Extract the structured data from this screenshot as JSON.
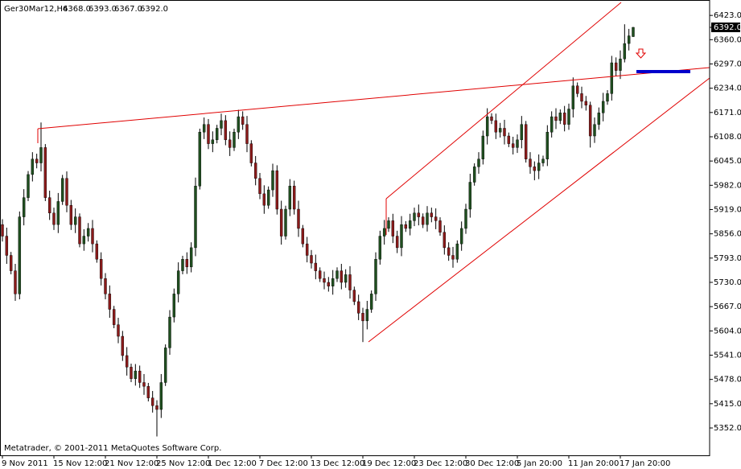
{
  "chart_data": {
    "type": "candlestick",
    "title": "Ger30Mar12,H4",
    "header_values": [
      "6368.0",
      "6393.0",
      "6367.0",
      "6392.0"
    ],
    "price_label": "6392.0",
    "footer": "Metatrader, © 2001-2011 MetaQuotes Software Corp.",
    "up_color": "#1f4f1f",
    "down_color": "#8b1a1a",
    "ylim": [
      5281,
      6463
    ],
    "yticks": [
      {
        "value": 6423,
        "label": "6423.0"
      },
      {
        "value": 6360,
        "label": "6360.0"
      },
      {
        "value": 6297,
        "label": "6297.0"
      },
      {
        "value": 6234,
        "label": "6234.0"
      },
      {
        "value": 6171,
        "label": "6171.0"
      },
      {
        "value": 6108,
        "label": "6108.0"
      },
      {
        "value": 6045,
        "label": "6045.0"
      },
      {
        "value": 5982,
        "label": "5982.0"
      },
      {
        "value": 5919,
        "label": "5919.0"
      },
      {
        "value": 5856,
        "label": "5856.0"
      },
      {
        "value": 5793,
        "label": "5793.0"
      },
      {
        "value": 5730,
        "label": "5730.0"
      },
      {
        "value": 5667,
        "label": "5667.0"
      },
      {
        "value": 5604,
        "label": "5604.0"
      },
      {
        "value": 5541,
        "label": "5541.0"
      },
      {
        "value": 5478,
        "label": "5478.0"
      },
      {
        "value": 5415,
        "label": "5415.0"
      },
      {
        "value": 5352,
        "label": "5352.0"
      }
    ],
    "categories": [
      "9 Nov 2011",
      null,
      null,
      null,
      null,
      null,
      null,
      null,
      null,
      null,
      null,
      null,
      "15 Nov 12:00",
      null,
      null,
      null,
      null,
      null,
      null,
      null,
      null,
      null,
      null,
      null,
      "21 Nov 12:00",
      null,
      null,
      null,
      null,
      null,
      null,
      null,
      null,
      null,
      null,
      null,
      "25 Nov 12:00",
      null,
      null,
      null,
      null,
      null,
      null,
      null,
      null,
      null,
      null,
      null,
      "1 Dec 12:00",
      null,
      null,
      null,
      null,
      null,
      null,
      null,
      null,
      null,
      null,
      null,
      "7 Dec 12:00",
      null,
      null,
      null,
      null,
      null,
      null,
      null,
      null,
      null,
      null,
      null,
      "13 Dec 12:00",
      null,
      null,
      null,
      null,
      null,
      null,
      null,
      null,
      null,
      null,
      null,
      "19 Dec 12:00",
      null,
      null,
      null,
      null,
      null,
      null,
      null,
      null,
      null,
      null,
      null,
      "23 Dec 12:00",
      null,
      null,
      null,
      null,
      null,
      null,
      null,
      null,
      null,
      null,
      null,
      "30 Dec 12:00",
      null,
      null,
      null,
      null,
      null,
      null,
      null,
      null,
      null,
      null,
      null,
      "5 Jan 20:00",
      null,
      null,
      null,
      null,
      null,
      null,
      null,
      null,
      null,
      null,
      null,
      "11 Jan 20:00",
      null,
      null,
      null,
      null,
      null,
      null,
      null,
      null,
      null,
      null,
      null,
      "17 Jan 20:00",
      null,
      null,
      null
    ],
    "ohlc": [
      [
        5880,
        5894,
        5836,
        5850
      ],
      [
        5850,
        5872,
        5778,
        5800
      ],
      [
        5800,
        5809,
        5751,
        5760
      ],
      [
        5760,
        5778,
        5682,
        5700
      ],
      [
        5700,
        5914,
        5686,
        5900
      ],
      [
        5900,
        5972,
        5878,
        5950
      ],
      [
        5950,
        6019,
        5941,
        6010
      ],
      [
        6010,
        6068,
        5992,
        6050
      ],
      [
        6050,
        6064,
        6026,
        6040
      ],
      [
        6040,
        6145,
        6018,
        6080
      ],
      [
        6080,
        6089,
        5941,
        5950
      ],
      [
        5950,
        5968,
        5892,
        5910
      ],
      [
        5910,
        5924,
        5866,
        5880
      ],
      [
        5880,
        5962,
        5858,
        5940
      ],
      [
        5940,
        6009,
        5931,
        6000
      ],
      [
        6000,
        6018,
        5912,
        5930
      ],
      [
        5930,
        5944,
        5866,
        5880
      ],
      [
        5880,
        5922,
        5858,
        5900
      ],
      [
        5900,
        5909,
        5821,
        5830
      ],
      [
        5830,
        5868,
        5812,
        5850
      ],
      [
        5850,
        5884,
        5836,
        5870
      ],
      [
        5870,
        5892,
        5808,
        5830
      ],
      [
        5830,
        5839,
        5781,
        5790
      ],
      [
        5790,
        5808,
        5722,
        5740
      ],
      [
        5740,
        5754,
        5686,
        5700
      ],
      [
        5700,
        5722,
        5638,
        5660
      ],
      [
        5660,
        5669,
        5611,
        5620
      ],
      [
        5620,
        5638,
        5572,
        5590
      ],
      [
        5590,
        5604,
        5526,
        5540
      ],
      [
        5540,
        5562,
        5488,
        5510
      ],
      [
        5510,
        5519,
        5471,
        5480
      ],
      [
        5480,
        5518,
        5462,
        5500
      ],
      [
        5500,
        5514,
        5456,
        5470
      ],
      [
        5470,
        5492,
        5438,
        5460
      ],
      [
        5460,
        5469,
        5421,
        5430
      ],
      [
        5430,
        5448,
        5392,
        5410
      ],
      [
        5410,
        5424,
        5330,
        5400
      ],
      [
        5400,
        5492,
        5378,
        5470
      ],
      [
        5470,
        5569,
        5461,
        5560
      ],
      [
        5560,
        5658,
        5542,
        5640
      ],
      [
        5640,
        5714,
        5626,
        5700
      ],
      [
        5700,
        5782,
        5678,
        5760
      ],
      [
        5760,
        5799,
        5751,
        5790
      ],
      [
        5790,
        5808,
        5752,
        5770
      ],
      [
        5770,
        5834,
        5756,
        5820
      ],
      [
        5820,
        6002,
        5798,
        5980
      ],
      [
        5980,
        6129,
        5971,
        6120
      ],
      [
        6120,
        6158,
        6102,
        6140
      ],
      [
        6140,
        6154,
        6076,
        6090
      ],
      [
        6090,
        6122,
        6068,
        6100
      ],
      [
        6100,
        6139,
        6091,
        6130
      ],
      [
        6130,
        6168,
        6112,
        6150
      ],
      [
        6150,
        6164,
        6086,
        6100
      ],
      [
        6100,
        6122,
        6058,
        6080
      ],
      [
        6080,
        6129,
        6071,
        6120
      ],
      [
        6120,
        6178,
        6102,
        6160
      ],
      [
        6160,
        6174,
        6126,
        6140
      ],
      [
        6140,
        6162,
        6068,
        6090
      ],
      [
        6090,
        6099,
        6031,
        6040
      ],
      [
        6040,
        6058,
        5982,
        6000
      ],
      [
        6000,
        6014,
        5946,
        5960
      ],
      [
        5960,
        5982,
        5908,
        5930
      ],
      [
        5930,
        5979,
        5921,
        5970
      ],
      [
        5970,
        6038,
        5952,
        6020
      ],
      [
        6020,
        6034,
        5906,
        5920
      ],
      [
        5920,
        5942,
        5828,
        5850
      ],
      [
        5850,
        5929,
        5841,
        5920
      ],
      [
        5920,
        5998,
        5902,
        5980
      ],
      [
        5980,
        5994,
        5906,
        5920
      ],
      [
        5920,
        5942,
        5848,
        5870
      ],
      [
        5870,
        5879,
        5821,
        5830
      ],
      [
        5830,
        5848,
        5782,
        5800
      ],
      [
        5800,
        5814,
        5766,
        5780
      ],
      [
        5780,
        5802,
        5738,
        5760
      ],
      [
        5760,
        5769,
        5731,
        5740
      ],
      [
        5740,
        5758,
        5712,
        5730
      ],
      [
        5730,
        5744,
        5706,
        5720
      ],
      [
        5720,
        5762,
        5698,
        5740
      ],
      [
        5740,
        5769,
        5731,
        5760
      ],
      [
        5760,
        5778,
        5712,
        5730
      ],
      [
        5730,
        5764,
        5716,
        5750
      ],
      [
        5750,
        5772,
        5688,
        5710
      ],
      [
        5710,
        5719,
        5671,
        5680
      ],
      [
        5680,
        5698,
        5632,
        5650
      ],
      [
        5650,
        5664,
        5575,
        5630
      ],
      [
        5630,
        5682,
        5608,
        5660
      ],
      [
        5660,
        5709,
        5651,
        5700
      ],
      [
        5700,
        5808,
        5682,
        5790
      ],
      [
        5790,
        5864,
        5776,
        5850
      ],
      [
        5850,
        5892,
        5828,
        5870
      ],
      [
        5870,
        5899,
        5861,
        5890
      ],
      [
        5890,
        5908,
        5832,
        5850
      ],
      [
        5850,
        5864,
        5806,
        5820
      ],
      [
        5820,
        5902,
        5798,
        5880
      ],
      [
        5880,
        5889,
        5861,
        5870
      ],
      [
        5870,
        5908,
        5852,
        5890
      ],
      [
        5890,
        5924,
        5876,
        5910
      ],
      [
        5910,
        5932,
        5878,
        5900
      ],
      [
        5900,
        5909,
        5871,
        5880
      ],
      [
        5880,
        5928,
        5862,
        5910
      ],
      [
        5910,
        5924,
        5886,
        5900
      ],
      [
        5900,
        5922,
        5868,
        5890
      ],
      [
        5890,
        5899,
        5851,
        5860
      ],
      [
        5860,
        5878,
        5802,
        5820
      ],
      [
        5820,
        5834,
        5786,
        5800
      ],
      [
        5800,
        5822,
        5768,
        5790
      ],
      [
        5790,
        5839,
        5781,
        5830
      ],
      [
        5830,
        5888,
        5812,
        5870
      ],
      [
        5870,
        5934,
        5856,
        5920
      ],
      [
        5920,
        6012,
        5898,
        5990
      ],
      [
        5990,
        6039,
        5981,
        6030
      ],
      [
        6030,
        6068,
        6012,
        6050
      ],
      [
        6050,
        6124,
        6036,
        6110
      ],
      [
        6110,
        6182,
        6088,
        6160
      ],
      [
        6160,
        6169,
        6141,
        6150
      ],
      [
        6150,
        6168,
        6102,
        6120
      ],
      [
        6120,
        6144,
        6106,
        6130
      ],
      [
        6130,
        6152,
        6088,
        6110
      ],
      [
        6110,
        6119,
        6081,
        6090
      ],
      [
        6090,
        6108,
        6062,
        6080
      ],
      [
        6080,
        6114,
        6066,
        6100
      ],
      [
        6100,
        6162,
        6078,
        6140
      ],
      [
        6140,
        6149,
        6041,
        6050
      ],
      [
        6050,
        6068,
        6012,
        6030
      ],
      [
        6030,
        6044,
        5995,
        6020
      ],
      [
        6020,
        6062,
        5998,
        6040
      ],
      [
        6040,
        6059,
        6031,
        6050
      ],
      [
        6050,
        6138,
        6032,
        6120
      ],
      [
        6120,
        6174,
        6106,
        6160
      ],
      [
        6160,
        6182,
        6128,
        6150
      ],
      [
        6150,
        6179,
        6141,
        6170
      ],
      [
        6170,
        6188,
        6122,
        6140
      ],
      [
        6140,
        6194,
        6126,
        6180
      ],
      [
        6180,
        6262,
        6158,
        6240
      ],
      [
        6240,
        6249,
        6211,
        6220
      ],
      [
        6220,
        6238,
        6182,
        6200
      ],
      [
        6200,
        6214,
        6176,
        6190
      ],
      [
        6190,
        6199,
        6080,
        6110
      ],
      [
        6110,
        6158,
        6092,
        6140
      ],
      [
        6140,
        6184,
        6126,
        6170
      ],
      [
        6170,
        6222,
        6148,
        6200
      ],
      [
        6200,
        6229,
        6191,
        6220
      ],
      [
        6220,
        6318,
        6202,
        6300
      ],
      [
        6300,
        6314,
        6266,
        6280
      ],
      [
        6280,
        6332,
        6258,
        6310
      ],
      [
        6310,
        6400,
        6301,
        6350
      ],
      [
        6350,
        6388,
        6332,
        6370
      ],
      [
        6368,
        6393,
        6367,
        6392
      ]
    ]
  }
}
